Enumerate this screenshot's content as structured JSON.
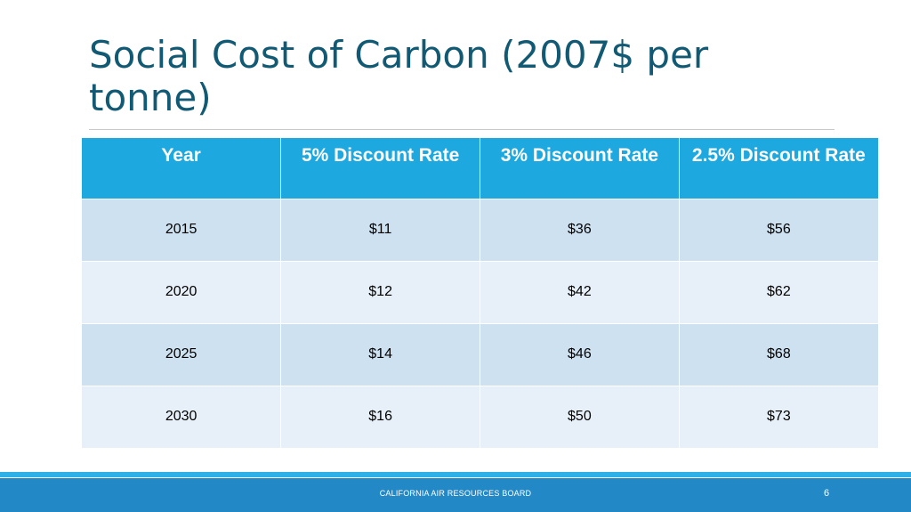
{
  "slide": {
    "title": "Social Cost of Carbon (2007$ per tonne)"
  },
  "table": {
    "headers": [
      "Year",
      "5% Discount Rate",
      "3% Discount Rate",
      "2.5% Discount Rate"
    ],
    "rows": [
      [
        "2015",
        "$11",
        "$36",
        "$56"
      ],
      [
        "2020",
        "$12",
        "$42",
        "$62"
      ],
      [
        "2025",
        "$14",
        "$46",
        "$68"
      ],
      [
        "2030",
        "$16",
        "$50",
        "$73"
      ]
    ]
  },
  "footer": {
    "organization": "CALIFORNIA AIR RESOURCES BOARD",
    "page_number": "6"
  },
  "colors": {
    "title": "#125a74",
    "header_fill": "#1ea8e0",
    "row_dark": "#cde1f1",
    "row_light": "#e7f0f8",
    "footer_bar": "#2389c6",
    "footer_stripe": "#2fb0e6"
  }
}
